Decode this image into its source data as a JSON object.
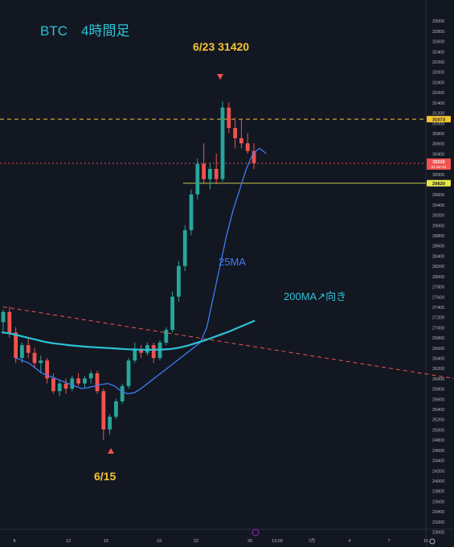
{
  "annotations": {
    "title": "BTC　4時間足",
    "peak_label": "6/23 31420",
    "low_label": "6/15",
    "ma25_label": "25MA",
    "ma200_label": "200MA↗向き"
  },
  "price_boxes": {
    "resistance": "31073",
    "current": "30210",
    "countdown": "01:52:42",
    "support": "29820"
  },
  "chart_data": {
    "type": "candlestick",
    "ylim": [
      23000,
      33200
    ],
    "y_ticks": [
      23000,
      23200,
      23400,
      23600,
      23800,
      24000,
      24200,
      24400,
      24600,
      24800,
      25000,
      25200,
      25400,
      25600,
      25800,
      26000,
      26200,
      26400,
      26600,
      26800,
      27000,
      27200,
      27400,
      27600,
      27800,
      28000,
      28200,
      28400,
      28600,
      28800,
      29000,
      29200,
      29400,
      29600,
      29800,
      30000,
      30200,
      30400,
      30600,
      30800,
      31000,
      31200,
      31400,
      31600,
      31800,
      32000,
      32200,
      32400,
      32600,
      32800,
      33000
    ],
    "x_ticks": [
      "8",
      "12",
      "15",
      "19",
      "22",
      "26",
      "13:00",
      "7月",
      "4",
      "7",
      "10"
    ],
    "horizontal_levels": [
      {
        "value": 31073,
        "style": "dashed",
        "color": "#f4c430"
      },
      {
        "value": 30210,
        "style": "dotted",
        "color": "#ef5350"
      },
      {
        "value": 29820,
        "style": "solid",
        "color": "#c8c84a"
      }
    ],
    "trendline": {
      "start": [
        0,
        27400
      ],
      "end": [
        113,
        25200
      ],
      "style": "dashed",
      "color": "#ef5350"
    },
    "ma25": [
      26400,
      26350,
      26300,
      26200,
      26100,
      26050,
      26000,
      25950,
      25900,
      25850,
      25800,
      25820,
      25850,
      25880,
      25900,
      25850,
      25750,
      25700,
      25720,
      25800,
      25900,
      26000,
      26100,
      26200,
      26300,
      26400,
      26500,
      26600,
      26700,
      27000,
      27600,
      28200,
      28800,
      29300,
      29700,
      30100,
      30400,
      30500,
      30400
    ],
    "ma200": [
      26900,
      26880,
      26840,
      26800,
      26760,
      26720,
      26690,
      26670,
      26650,
      26635,
      26620,
      26610,
      26600,
      26590,
      26580,
      26570,
      26565,
      26560,
      26560,
      26565,
      26575,
      26600,
      26640,
      26690,
      26740,
      26800,
      26860,
      26920,
      26990,
      27060,
      27130
    ],
    "candles": [
      [
        27100,
        27350,
        26900,
        27300
      ],
      [
        27300,
        27400,
        26800,
        26900
      ],
      [
        26900,
        27000,
        26300,
        26400
      ],
      [
        26400,
        26700,
        26300,
        26650
      ],
      [
        26650,
        26800,
        26400,
        26500
      ],
      [
        26500,
        26600,
        26200,
        26300
      ],
      [
        26300,
        26450,
        26100,
        26350
      ],
      [
        26350,
        26400,
        25900,
        26000
      ],
      [
        26000,
        26100,
        25700,
        25750
      ],
      [
        25750,
        25950,
        25650,
        25900
      ],
      [
        25900,
        26000,
        25700,
        25800
      ],
      [
        25800,
        26050,
        25750,
        26000
      ],
      [
        26000,
        26100,
        25850,
        25900
      ],
      [
        25900,
        26050,
        25800,
        26000
      ],
      [
        26000,
        26150,
        25900,
        26100
      ],
      [
        26100,
        26150,
        25700,
        25750
      ],
      [
        25750,
        25800,
        24800,
        25000
      ],
      [
        25000,
        25300,
        24900,
        25250
      ],
      [
        25250,
        25600,
        25200,
        25550
      ],
      [
        25550,
        25900,
        25500,
        25850
      ],
      [
        25850,
        26400,
        25800,
        26350
      ],
      [
        26350,
        26700,
        26300,
        26550
      ],
      [
        26550,
        26650,
        26400,
        26500
      ],
      [
        26500,
        26700,
        26450,
        26650
      ],
      [
        26650,
        26700,
        26300,
        26400
      ],
      [
        26400,
        26750,
        26350,
        26700
      ],
      [
        26700,
        27000,
        26650,
        26950
      ],
      [
        26950,
        27700,
        26900,
        27600
      ],
      [
        27600,
        28300,
        27500,
        28200
      ],
      [
        28200,
        29000,
        28100,
        28900
      ],
      [
        28900,
        29700,
        28800,
        29600
      ],
      [
        29600,
        30300,
        29500,
        30200
      ],
      [
        30200,
        30600,
        29800,
        29900
      ],
      [
        29900,
        30200,
        29700,
        30100
      ],
      [
        30100,
        30400,
        29800,
        29900
      ],
      [
        29900,
        31420,
        29850,
        31300
      ],
      [
        31300,
        31400,
        30800,
        30900
      ],
      [
        30900,
        31100,
        30500,
        30700
      ],
      [
        30700,
        31073,
        30500,
        30600
      ],
      [
        30600,
        30800,
        30400,
        30450
      ],
      [
        30450,
        30600,
        30100,
        30210
      ]
    ]
  }
}
